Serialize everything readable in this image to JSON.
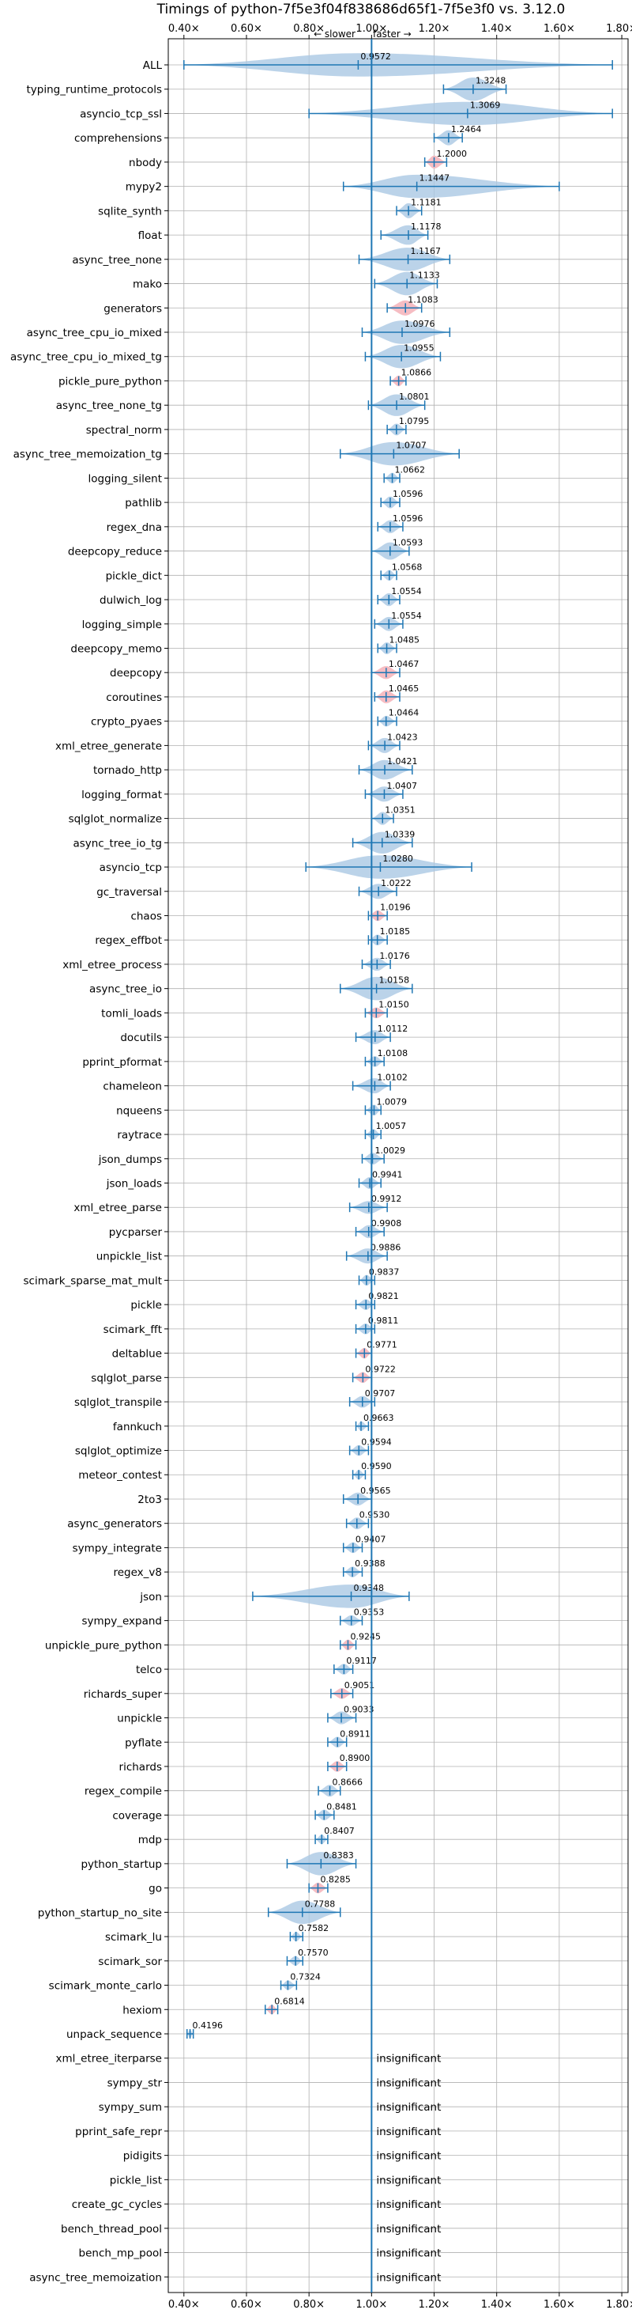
{
  "chart_data": {
    "type": "violin",
    "title": "Timings of python-7f5e3f04f838686d65f1-7f5e3f0 vs. 3.12.0",
    "direction_labels": {
      "slower": "← slower",
      "faster": "faster →"
    },
    "xlim": [
      0.35,
      1.82
    ],
    "x_ticks": [
      0.4,
      0.6,
      0.8,
      1.0,
      1.2,
      1.4,
      1.6,
      1.8
    ],
    "x_tick_labels": [
      "0.40×",
      "0.60×",
      "0.80×",
      "1.00×",
      "1.20×",
      "1.40×",
      "1.60×",
      "1.80×"
    ],
    "reference_x": 1.0,
    "grid": true,
    "rows": [
      {
        "name": "ALL",
        "value": 0.9572,
        "min": 0.4,
        "max": 1.77,
        "spread": 0.25,
        "label": "0.9572"
      },
      {
        "name": "typing_runtime_protocols",
        "value": 1.3248,
        "min": 1.23,
        "max": 1.43,
        "spread": 0.1,
        "label": "1.3248"
      },
      {
        "name": "asyncio_tcp_ssl",
        "value": 1.3069,
        "min": 0.8,
        "max": 1.77,
        "spread": 0.35,
        "label": "1.3069"
      },
      {
        "name": "comprehensions",
        "value": 1.2464,
        "min": 1.2,
        "max": 1.29,
        "spread": 0.04,
        "label": "1.2464"
      },
      {
        "name": "nbody",
        "value": 1.2,
        "min": 1.17,
        "max": 1.24,
        "spread": 0.03,
        "label": "1.2000",
        "highlight": true
      },
      {
        "name": "mypy2",
        "value": 1.1447,
        "min": 0.91,
        "max": 1.6,
        "spread": 0.2,
        "label": "1.1447"
      },
      {
        "name": "sqlite_synth",
        "value": 1.1181,
        "min": 1.08,
        "max": 1.16,
        "spread": 0.04,
        "label": "1.1181"
      },
      {
        "name": "float",
        "value": 1.1178,
        "min": 1.03,
        "max": 1.18,
        "spread": 0.06,
        "label": "1.1178"
      },
      {
        "name": "async_tree_none",
        "value": 1.1167,
        "min": 0.96,
        "max": 1.25,
        "spread": 0.12,
        "label": "1.1167"
      },
      {
        "name": "mako",
        "value": 1.1133,
        "min": 1.01,
        "max": 1.21,
        "spread": 0.08,
        "label": "1.1133"
      },
      {
        "name": "generators",
        "value": 1.1083,
        "min": 1.05,
        "max": 1.16,
        "spread": 0.04,
        "label": "1.1083",
        "highlight": true
      },
      {
        "name": "async_tree_cpu_io_mixed",
        "value": 1.0976,
        "min": 0.97,
        "max": 1.25,
        "spread": 0.1,
        "label": "1.0976"
      },
      {
        "name": "async_tree_cpu_io_mixed_tg",
        "value": 1.0955,
        "min": 0.98,
        "max": 1.22,
        "spread": 0.09,
        "label": "1.0955"
      },
      {
        "name": "pickle_pure_python",
        "value": 1.0866,
        "min": 1.06,
        "max": 1.11,
        "spread": 0.02,
        "label": "1.0866",
        "highlight": true
      },
      {
        "name": "async_tree_none_tg",
        "value": 1.0801,
        "min": 0.99,
        "max": 1.17,
        "spread": 0.07,
        "label": "1.0801"
      },
      {
        "name": "spectral_norm",
        "value": 1.0795,
        "min": 1.05,
        "max": 1.11,
        "spread": 0.025,
        "label": "1.0795"
      },
      {
        "name": "async_tree_memoization_tg",
        "value": 1.0707,
        "min": 0.9,
        "max": 1.28,
        "spread": 0.13,
        "label": "1.0707"
      },
      {
        "name": "logging_silent",
        "value": 1.0662,
        "min": 1.04,
        "max": 1.09,
        "spread": 0.02,
        "label": "1.0662"
      },
      {
        "name": "pathlib",
        "value": 1.0596,
        "min": 1.03,
        "max": 1.09,
        "spread": 0.025,
        "label": "1.0596"
      },
      {
        "name": "regex_dna",
        "value": 1.0596,
        "min": 1.02,
        "max": 1.1,
        "spread": 0.03,
        "label": "1.0596"
      },
      {
        "name": "deepcopy_reduce",
        "value": 1.0593,
        "min": 1.0,
        "max": 1.12,
        "spread": 0.05,
        "label": "1.0593"
      },
      {
        "name": "pickle_dict",
        "value": 1.0568,
        "min": 1.03,
        "max": 1.08,
        "spread": 0.02,
        "label": "1.0568"
      },
      {
        "name": "dulwich_log",
        "value": 1.0554,
        "min": 1.02,
        "max": 1.09,
        "spread": 0.03,
        "label": "1.0554"
      },
      {
        "name": "logging_simple",
        "value": 1.0554,
        "min": 1.01,
        "max": 1.1,
        "spread": 0.035,
        "label": "1.0554"
      },
      {
        "name": "deepcopy_memo",
        "value": 1.0485,
        "min": 1.02,
        "max": 1.08,
        "spread": 0.025,
        "label": "1.0485"
      },
      {
        "name": "deepcopy",
        "value": 1.0467,
        "min": 1.0,
        "max": 1.09,
        "spread": 0.03,
        "label": "1.0467",
        "highlight": true
      },
      {
        "name": "coroutines",
        "value": 1.0465,
        "min": 1.01,
        "max": 1.09,
        "spread": 0.03,
        "label": "1.0465",
        "highlight": true
      },
      {
        "name": "crypto_pyaes",
        "value": 1.0464,
        "min": 1.02,
        "max": 1.08,
        "spread": 0.02,
        "label": "1.0464"
      },
      {
        "name": "xml_etree_generate",
        "value": 1.0423,
        "min": 0.99,
        "max": 1.09,
        "spread": 0.04,
        "label": "1.0423"
      },
      {
        "name": "tornado_http",
        "value": 1.0421,
        "min": 0.96,
        "max": 1.13,
        "spread": 0.06,
        "label": "1.0421"
      },
      {
        "name": "logging_format",
        "value": 1.0407,
        "min": 0.98,
        "max": 1.1,
        "spread": 0.04,
        "label": "1.0407"
      },
      {
        "name": "sqlglot_normalize",
        "value": 1.0351,
        "min": 1.0,
        "max": 1.07,
        "spread": 0.03,
        "label": "1.0351"
      },
      {
        "name": "async_tree_io_tg",
        "value": 1.0339,
        "min": 0.94,
        "max": 1.13,
        "spread": 0.07,
        "label": "1.0339"
      },
      {
        "name": "asyncio_tcp",
        "value": 1.028,
        "min": 0.79,
        "max": 1.32,
        "spread": 0.22,
        "label": "1.0280"
      },
      {
        "name": "gc_traversal",
        "value": 1.0222,
        "min": 0.96,
        "max": 1.08,
        "spread": 0.04,
        "label": "1.0222"
      },
      {
        "name": "chaos",
        "value": 1.0196,
        "min": 0.99,
        "max": 1.05,
        "spread": 0.02,
        "label": "1.0196",
        "highlight": true
      },
      {
        "name": "regex_effbot",
        "value": 1.0185,
        "min": 0.99,
        "max": 1.05,
        "spread": 0.02,
        "label": "1.0185"
      },
      {
        "name": "xml_etree_process",
        "value": 1.0176,
        "min": 0.97,
        "max": 1.06,
        "spread": 0.03,
        "label": "1.0176"
      },
      {
        "name": "async_tree_io",
        "value": 1.0158,
        "min": 0.9,
        "max": 1.13,
        "spread": 0.09,
        "label": "1.0158"
      },
      {
        "name": "tomli_loads",
        "value": 1.015,
        "min": 0.98,
        "max": 1.05,
        "spread": 0.02,
        "label": "1.0150",
        "highlight": true
      },
      {
        "name": "docutils",
        "value": 1.0112,
        "min": 0.95,
        "max": 1.06,
        "spread": 0.035,
        "label": "1.0112"
      },
      {
        "name": "pprint_pformat",
        "value": 1.0108,
        "min": 0.98,
        "max": 1.04,
        "spread": 0.02,
        "label": "1.0108"
      },
      {
        "name": "chameleon",
        "value": 1.0102,
        "min": 0.94,
        "max": 1.06,
        "spread": 0.04,
        "label": "1.0102"
      },
      {
        "name": "nqueens",
        "value": 1.0079,
        "min": 0.98,
        "max": 1.03,
        "spread": 0.02,
        "label": "1.0079"
      },
      {
        "name": "raytrace",
        "value": 1.0057,
        "min": 0.98,
        "max": 1.03,
        "spread": 0.02,
        "label": "1.0057"
      },
      {
        "name": "json_dumps",
        "value": 1.0029,
        "min": 0.97,
        "max": 1.04,
        "spread": 0.025,
        "label": "1.0029"
      },
      {
        "name": "json_loads",
        "value": 0.9941,
        "min": 0.96,
        "max": 1.03,
        "spread": 0.025,
        "label": "0.9941"
      },
      {
        "name": "xml_etree_parse",
        "value": 0.9912,
        "min": 0.93,
        "max": 1.05,
        "spread": 0.03,
        "label": "0.9912"
      },
      {
        "name": "pycparser",
        "value": 0.9908,
        "min": 0.95,
        "max": 1.04,
        "spread": 0.03,
        "label": "0.9908"
      },
      {
        "name": "unpickle_list",
        "value": 0.9886,
        "min": 0.92,
        "max": 1.05,
        "spread": 0.04,
        "label": "0.9886"
      },
      {
        "name": "scimark_sparse_mat_mult",
        "value": 0.9837,
        "min": 0.96,
        "max": 1.01,
        "spread": 0.02,
        "label": "0.9837"
      },
      {
        "name": "pickle",
        "value": 0.9821,
        "min": 0.95,
        "max": 1.01,
        "spread": 0.02,
        "label": "0.9821"
      },
      {
        "name": "scimark_fft",
        "value": 0.9811,
        "min": 0.95,
        "max": 1.01,
        "spread": 0.02,
        "label": "0.9811"
      },
      {
        "name": "deltablue",
        "value": 0.9771,
        "min": 0.95,
        "max": 1.0,
        "spread": 0.02,
        "label": "0.9771",
        "highlight": true
      },
      {
        "name": "sqlglot_parse",
        "value": 0.9722,
        "min": 0.94,
        "max": 1.0,
        "spread": 0.02,
        "label": "0.9722",
        "highlight": true
      },
      {
        "name": "sqlglot_transpile",
        "value": 0.9707,
        "min": 0.93,
        "max": 1.01,
        "spread": 0.025,
        "label": "0.9707"
      },
      {
        "name": "fannkuch",
        "value": 0.9663,
        "min": 0.95,
        "max": 0.99,
        "spread": 0.015,
        "label": "0.9663"
      },
      {
        "name": "sqlglot_optimize",
        "value": 0.9594,
        "min": 0.93,
        "max": 0.99,
        "spread": 0.02,
        "label": "0.9594"
      },
      {
        "name": "meteor_contest",
        "value": 0.959,
        "min": 0.94,
        "max": 0.98,
        "spread": 0.015,
        "label": "0.9590"
      },
      {
        "name": "2to3",
        "value": 0.9565,
        "min": 0.91,
        "max": 1.0,
        "spread": 0.03,
        "label": "0.9565"
      },
      {
        "name": "async_generators",
        "value": 0.953,
        "min": 0.92,
        "max": 0.99,
        "spread": 0.025,
        "label": "0.9530"
      },
      {
        "name": "sympy_integrate",
        "value": 0.9407,
        "min": 0.91,
        "max": 0.97,
        "spread": 0.02,
        "label": "0.9407"
      },
      {
        "name": "regex_v8",
        "value": 0.9388,
        "min": 0.91,
        "max": 0.97,
        "spread": 0.02,
        "label": "0.9388"
      },
      {
        "name": "json",
        "value": 0.9348,
        "min": 0.62,
        "max": 1.12,
        "spread": 0.12,
        "label": "0.9348"
      },
      {
        "name": "sympy_expand",
        "value": 0.9353,
        "min": 0.9,
        "max": 0.97,
        "spread": 0.02,
        "label": "0.9353"
      },
      {
        "name": "unpickle_pure_python",
        "value": 0.9245,
        "min": 0.9,
        "max": 0.95,
        "spread": 0.02,
        "label": "0.9245",
        "highlight": true
      },
      {
        "name": "telco",
        "value": 0.9117,
        "min": 0.88,
        "max": 0.94,
        "spread": 0.02,
        "label": "0.9117"
      },
      {
        "name": "richards_super",
        "value": 0.9051,
        "min": 0.87,
        "max": 0.94,
        "spread": 0.02,
        "label": "0.9051",
        "highlight": true
      },
      {
        "name": "unpickle",
        "value": 0.9033,
        "min": 0.86,
        "max": 0.95,
        "spread": 0.03,
        "label": "0.9033"
      },
      {
        "name": "pyflate",
        "value": 0.8911,
        "min": 0.86,
        "max": 0.92,
        "spread": 0.02,
        "label": "0.8911"
      },
      {
        "name": "richards",
        "value": 0.89,
        "min": 0.86,
        "max": 0.92,
        "spread": 0.02,
        "label": "0.8900",
        "highlight": true
      },
      {
        "name": "regex_compile",
        "value": 0.8666,
        "min": 0.83,
        "max": 0.9,
        "spread": 0.025,
        "label": "0.8666"
      },
      {
        "name": "coverage",
        "value": 0.8481,
        "min": 0.82,
        "max": 0.88,
        "spread": 0.02,
        "label": "0.8481"
      },
      {
        "name": "mdp",
        "value": 0.8407,
        "min": 0.82,
        "max": 0.86,
        "spread": 0.015,
        "label": "0.8407"
      },
      {
        "name": "python_startup",
        "value": 0.8383,
        "min": 0.73,
        "max": 0.95,
        "spread": 0.08,
        "label": "0.8383"
      },
      {
        "name": "go",
        "value": 0.8285,
        "min": 0.8,
        "max": 0.86,
        "spread": 0.02,
        "label": "0.8285",
        "highlight": true
      },
      {
        "name": "python_startup_no_site",
        "value": 0.7788,
        "min": 0.67,
        "max": 0.9,
        "spread": 0.09,
        "label": "0.7788"
      },
      {
        "name": "scimark_lu",
        "value": 0.7582,
        "min": 0.74,
        "max": 0.78,
        "spread": 0.015,
        "label": "0.7582"
      },
      {
        "name": "scimark_sor",
        "value": 0.757,
        "min": 0.73,
        "max": 0.78,
        "spread": 0.015,
        "label": "0.7570"
      },
      {
        "name": "scimark_monte_carlo",
        "value": 0.7324,
        "min": 0.71,
        "max": 0.76,
        "spread": 0.015,
        "label": "0.7324"
      },
      {
        "name": "hexiom",
        "value": 0.6814,
        "min": 0.66,
        "max": 0.7,
        "spread": 0.015,
        "label": "0.6814",
        "highlight": true
      },
      {
        "name": "unpack_sequence",
        "value": 0.4196,
        "min": 0.41,
        "max": 0.43,
        "spread": 0.008,
        "label": "0.4196"
      },
      {
        "name": "xml_etree_iterparse",
        "label": "insignificant",
        "insignificant": true
      },
      {
        "name": "sympy_str",
        "label": "insignificant",
        "insignificant": true
      },
      {
        "name": "sympy_sum",
        "label": "insignificant",
        "insignificant": true
      },
      {
        "name": "pprint_safe_repr",
        "label": "insignificant",
        "insignificant": true
      },
      {
        "name": "pidigits",
        "label": "insignificant",
        "insignificant": true
      },
      {
        "name": "pickle_list",
        "label": "insignificant",
        "insignificant": true
      },
      {
        "name": "create_gc_cycles",
        "label": "insignificant",
        "insignificant": true
      },
      {
        "name": "bench_thread_pool",
        "label": "insignificant",
        "insignificant": true
      },
      {
        "name": "bench_mp_pool",
        "label": "insignificant",
        "insignificant": true
      },
      {
        "name": "async_tree_memoization",
        "label": "insignificant",
        "insignificant": true
      }
    ],
    "colors": {
      "violin": "#aac8e4",
      "highlight": "#f4b2b8",
      "line": "#1f77b4",
      "grid": "#b0b0b0",
      "reference": "#1f77b4",
      "text": "#000000"
    }
  }
}
